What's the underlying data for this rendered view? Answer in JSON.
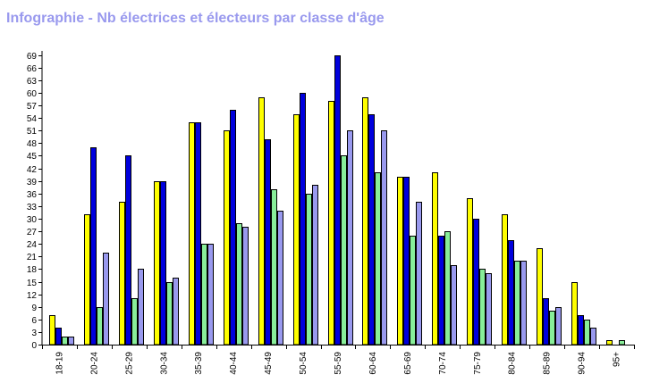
{
  "page": {
    "title": "Infographie - Nb électrices et électeurs par classe d'âge"
  },
  "chart_data": {
    "type": "bar",
    "title": "Infographie - Nb électrices et électeurs par classe d'âge",
    "xlabel": "",
    "ylabel": "",
    "ylim": [
      0,
      70
    ],
    "yticks": [
      0,
      3,
      6,
      9,
      12,
      15,
      18,
      21,
      24,
      27,
      30,
      33,
      36,
      39,
      42,
      45,
      48,
      51,
      54,
      57,
      60,
      63,
      66,
      69
    ],
    "grid": false,
    "legend": "none",
    "categories": [
      "18-19",
      "20-24",
      "25-29",
      "30-34",
      "35-39",
      "40-44",
      "45-49",
      "50-54",
      "55-59",
      "60-64",
      "65-69",
      "70-74",
      "75-79",
      "80-84",
      "85-89",
      "90-94",
      "95+"
    ],
    "series": [
      {
        "color": "#ffff00",
        "values": [
          7,
          31,
          34,
          39,
          53,
          51,
          59,
          55,
          58,
          59,
          40,
          41,
          35,
          31,
          23,
          15,
          1
        ]
      },
      {
        "color": "#0000dd",
        "values": [
          4,
          47,
          45,
          39,
          53,
          56,
          49,
          60,
          69,
          55,
          40,
          26,
          30,
          25,
          11,
          7,
          0
        ]
      },
      {
        "color": "#88ee99",
        "values": [
          2,
          9,
          11,
          15,
          24,
          29,
          37,
          36,
          45,
          41,
          26,
          27,
          18,
          20,
          8,
          6,
          1
        ]
      },
      {
        "color": "#9999ee",
        "values": [
          2,
          22,
          18,
          16,
          24,
          28,
          32,
          38,
          51,
          51,
          34,
          19,
          17,
          20,
          9,
          4,
          0
        ]
      }
    ]
  }
}
